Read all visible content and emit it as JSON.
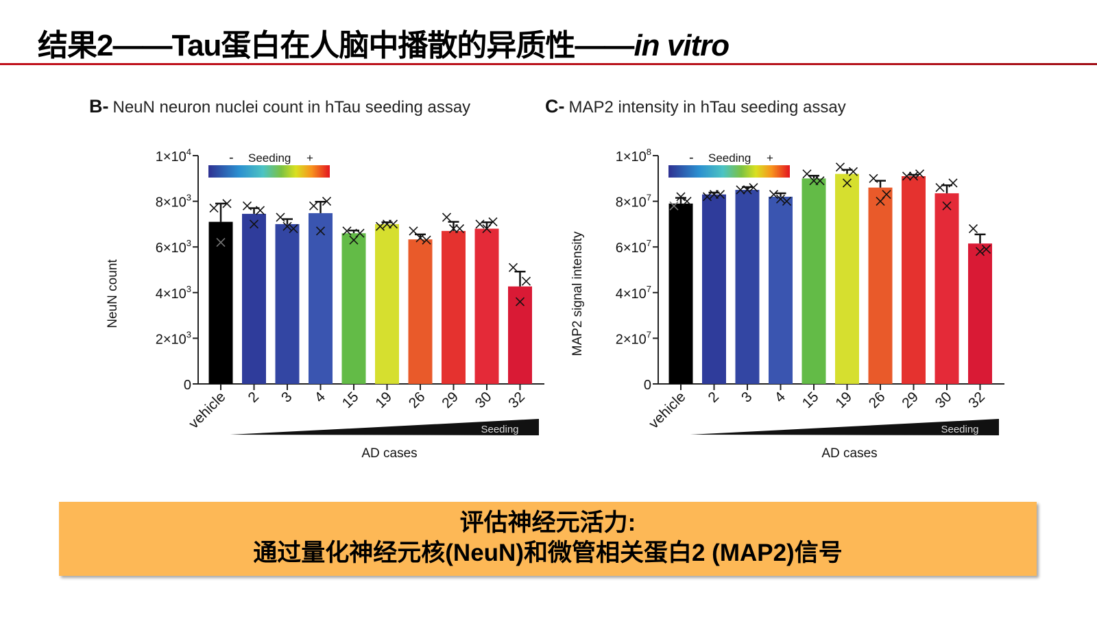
{
  "slide": {
    "title_main": "结果2——Tau蛋白在人脑中播散的异质性——",
    "title_italic": "in vitro",
    "accent_color": "#c0101a"
  },
  "callout": {
    "line1": "评估神经元活力:",
    "line2": "通过量化神经元核(NeuN)和微管相关蛋白2 (MAP2)信号",
    "background": "#fdb856"
  },
  "chart_data": [
    {
      "type": "bar",
      "panel_letter": "B-",
      "title": "NeuN neuron nuclei count in hTau seeding assay",
      "xlabel": "AD cases",
      "ylabel": "NeuN count",
      "ylim": [
        0,
        10000
      ],
      "ytick_values": [
        0,
        2000,
        4000,
        6000,
        8000,
        10000
      ],
      "ytick_labels": [
        {
          "base": "0",
          "exp": ""
        },
        {
          "base": "2x10",
          "exp": "3"
        },
        {
          "base": "4x10",
          "exp": "3"
        },
        {
          "base": "6x10",
          "exp": "3"
        },
        {
          "base": "8x10",
          "exp": "3"
        },
        {
          "base": "1x10",
          "exp": "4"
        }
      ],
      "categories": [
        "vehicle",
        "2",
        "3",
        "4",
        "15",
        "19",
        "26",
        "29",
        "30",
        "32"
      ],
      "values": [
        7100,
        7450,
        7000,
        7480,
        6600,
        7000,
        6330,
        6700,
        6800,
        4270
      ],
      "errors": [
        800,
        250,
        220,
        500,
        120,
        80,
        220,
        400,
        280,
        650
      ],
      "points": [
        [
          7700,
          7900,
          6200
        ],
        [
          7800,
          7600,
          7000
        ],
        [
          7300,
          6800,
          6900
        ],
        [
          7800,
          8000,
          6700
        ],
        [
          6700,
          6600,
          6300
        ],
        [
          6900,
          7000,
          7000
        ],
        [
          6700,
          6300,
          6400
        ],
        [
          7300,
          6800,
          6800
        ],
        [
          7000,
          7100,
          6800
        ],
        [
          5100,
          4500,
          3600
        ]
      ],
      "bar_colors": [
        "#000000",
        "#2f3c9b",
        "#3346a3",
        "#3a55b0",
        "#63bb47",
        "#d6df2f",
        "#e95a2a",
        "#e5322f",
        "#e42a38",
        "#d91a35"
      ],
      "legend": {
        "minus": "-",
        "label": "Seeding",
        "plus": "+"
      },
      "ramp_label": "Seeding"
    },
    {
      "type": "bar",
      "panel_letter": "C-",
      "title": "MAP2 intensity in hTau seeding assay",
      "xlabel": "AD cases",
      "ylabel": "MAP2 signal intensity",
      "ylim": [
        0,
        100000000
      ],
      "ytick_values": [
        0,
        20000000,
        40000000,
        60000000,
        80000000,
        100000000
      ],
      "ytick_labels": [
        {
          "base": "0",
          "exp": ""
        },
        {
          "base": "2x10",
          "exp": "7"
        },
        {
          "base": "4x10",
          "exp": "7"
        },
        {
          "base": "6x10",
          "exp": "7"
        },
        {
          "base": "8x10",
          "exp": "7"
        },
        {
          "base": "1x10",
          "exp": "8"
        }
      ],
      "categories": [
        "vehicle",
        "2",
        "3",
        "4",
        "15",
        "19",
        "26",
        "29",
        "30",
        "32"
      ],
      "values": [
        79000000,
        83000000,
        85000000,
        82000000,
        90000000,
        92000000,
        86000000,
        91000000,
        83500000,
        61500000
      ],
      "errors": [
        2500000,
        800000,
        1200000,
        1500000,
        1200000,
        1800000,
        3000000,
        600000,
        3500000,
        4000000
      ],
      "points": [
        [
          78000000,
          80000000,
          82000000
        ],
        [
          82000000,
          83000000,
          83000000
        ],
        [
          85000000,
          86000000,
          85000000
        ],
        [
          83000000,
          80000000,
          81000000
        ],
        [
          92000000,
          89000000,
          89000000
        ],
        [
          95000000,
          93000000,
          88000000
        ],
        [
          90000000,
          83000000,
          80000000
        ],
        [
          91000000,
          92000000,
          91000000
        ],
        [
          86000000,
          88000000,
          78000000
        ],
        [
          68000000,
          59000000,
          58000000
        ]
      ],
      "bar_colors": [
        "#000000",
        "#2f3c9b",
        "#3346a3",
        "#3a55b0",
        "#63bb47",
        "#d6df2f",
        "#e95a2a",
        "#e5322f",
        "#e42a38",
        "#d91a35"
      ],
      "legend": {
        "minus": "-",
        "label": "Seeding",
        "plus": "+"
      },
      "ramp_label": "Seeding"
    }
  ]
}
